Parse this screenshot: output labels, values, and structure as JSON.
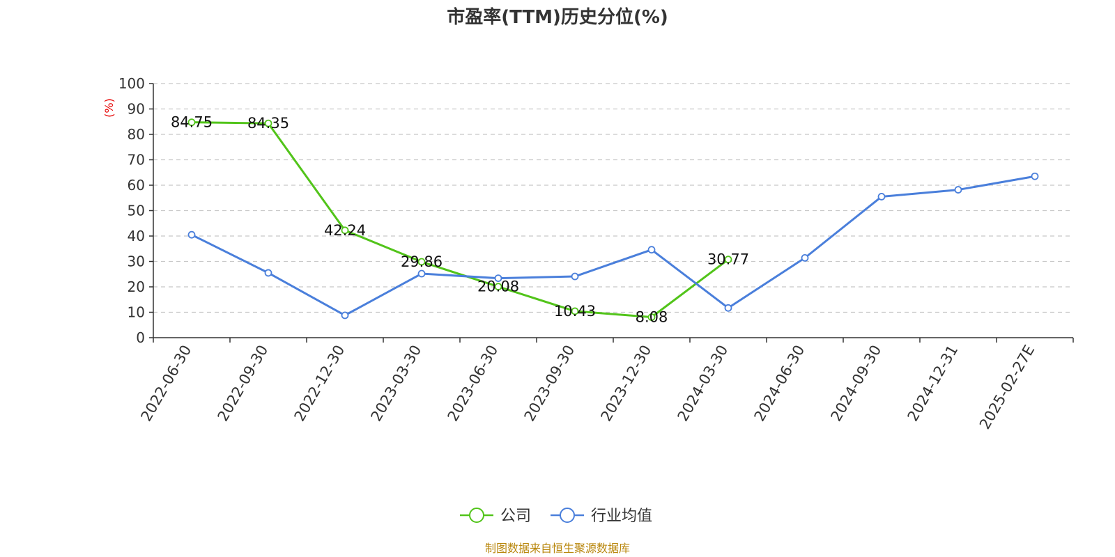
{
  "colors": {
    "company": "#52c41a",
    "industry": "#4a7fdb",
    "source": "#b8860b",
    "unit": "#e60000"
  },
  "chart_data": {
    "type": "line",
    "title": "市盈率(TTM)历史分位(%)",
    "ylabel": "(%)",
    "xlabel": "",
    "ylim": [
      0,
      100
    ],
    "yticks": [
      0,
      10,
      20,
      30,
      40,
      50,
      60,
      70,
      80,
      90,
      100
    ],
    "grid": true,
    "legend_position": "bottom-center",
    "categories": [
      "2022-06-30",
      "2022-09-30",
      "2022-12-30",
      "2023-03-30",
      "2023-06-30",
      "2023-09-30",
      "2023-12-30",
      "2024-03-30",
      "2024-06-30",
      "2024-09-30",
      "2024-12-31",
      "2025-02-27E"
    ],
    "series": [
      {
        "name": "公司",
        "color": "#52c41a",
        "show_labels": true,
        "values": [
          84.75,
          84.35,
          42.24,
          29.86,
          20.08,
          10.43,
          8.08,
          30.77,
          null,
          null,
          null,
          null
        ]
      },
      {
        "name": "行业均值",
        "color": "#4a7fdb",
        "show_labels": false,
        "values": [
          40.5,
          25.5,
          8.8,
          25.2,
          23.4,
          24.1,
          34.6,
          11.7,
          31.4,
          55.5,
          58.2,
          63.5
        ]
      }
    ],
    "source": "制图数据来自恒生聚源数据库"
  }
}
